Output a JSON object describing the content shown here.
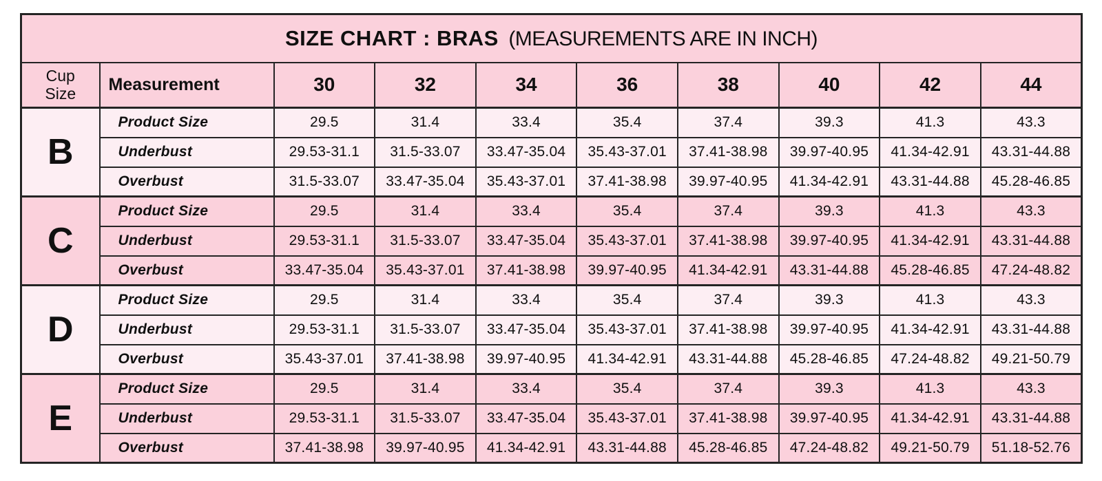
{
  "title": {
    "main": "SIZE CHART : BRAS",
    "sub": "(MEASUREMENTS ARE IN INCH)"
  },
  "header": {
    "cup_size_line1": "Cup",
    "cup_size_line2": "Size",
    "measurement": "Measurement",
    "sizes": [
      "30",
      "32",
      "34",
      "36",
      "38",
      "40",
      "42",
      "44"
    ]
  },
  "colors": {
    "pink_dark": "#fbd1dc",
    "pink_light": "#fdeef3",
    "border": "#242424",
    "text": "#101010",
    "page_background": "#ffffff"
  },
  "chart_data": {
    "type": "table",
    "title": "SIZE CHART : BRAS (MEASUREMENTS ARE IN INCH)",
    "columns": [
      "Cup Size",
      "Measurement",
      "30",
      "32",
      "34",
      "36",
      "38",
      "40",
      "42",
      "44"
    ],
    "groups": [
      {
        "cup": "B",
        "shade": "light",
        "rows": [
          {
            "label": "Product Size",
            "values": [
              "29.5",
              "31.4",
              "33.4",
              "35.4",
              "37.4",
              "39.3",
              "41.3",
              "43.3"
            ]
          },
          {
            "label": "Underbust",
            "values": [
              "29.53-31.1",
              "31.5-33.07",
              "33.47-35.04",
              "35.43-37.01",
              "37.41-38.98",
              "39.97-40.95",
              "41.34-42.91",
              "43.31-44.88"
            ]
          },
          {
            "label": "Overbust",
            "values": [
              "31.5-33.07",
              "33.47-35.04",
              "35.43-37.01",
              "37.41-38.98",
              "39.97-40.95",
              "41.34-42.91",
              "43.31-44.88",
              "45.28-46.85"
            ]
          }
        ]
      },
      {
        "cup": "C",
        "shade": "dark",
        "rows": [
          {
            "label": "Product Size",
            "values": [
              "29.5",
              "31.4",
              "33.4",
              "35.4",
              "37.4",
              "39.3",
              "41.3",
              "43.3"
            ]
          },
          {
            "label": "Underbust",
            "values": [
              "29.53-31.1",
              "31.5-33.07",
              "33.47-35.04",
              "35.43-37.01",
              "37.41-38.98",
              "39.97-40.95",
              "41.34-42.91",
              "43.31-44.88"
            ]
          },
          {
            "label": "Overbust",
            "values": [
              "33.47-35.04",
              "35.43-37.01",
              "37.41-38.98",
              "39.97-40.95",
              "41.34-42.91",
              "43.31-44.88",
              "45.28-46.85",
              "47.24-48.82"
            ]
          }
        ]
      },
      {
        "cup": "D",
        "shade": "light",
        "rows": [
          {
            "label": "Product Size",
            "values": [
              "29.5",
              "31.4",
              "33.4",
              "35.4",
              "37.4",
              "39.3",
              "41.3",
              "43.3"
            ]
          },
          {
            "label": "Underbust",
            "values": [
              "29.53-31.1",
              "31.5-33.07",
              "33.47-35.04",
              "35.43-37.01",
              "37.41-38.98",
              "39.97-40.95",
              "41.34-42.91",
              "43.31-44.88"
            ]
          },
          {
            "label": "Overbust",
            "values": [
              "35.43-37.01",
              "37.41-38.98",
              "39.97-40.95",
              "41.34-42.91",
              "43.31-44.88",
              "45.28-46.85",
              "47.24-48.82",
              "49.21-50.79"
            ]
          }
        ]
      },
      {
        "cup": "E",
        "shade": "dark",
        "rows": [
          {
            "label": "Product Size",
            "values": [
              "29.5",
              "31.4",
              "33.4",
              "35.4",
              "37.4",
              "39.3",
              "41.3",
              "43.3"
            ]
          },
          {
            "label": "Underbust",
            "values": [
              "29.53-31.1",
              "31.5-33.07",
              "33.47-35.04",
              "35.43-37.01",
              "37.41-38.98",
              "39.97-40.95",
              "41.34-42.91",
              "43.31-44.88"
            ]
          },
          {
            "label": "Overbust",
            "values": [
              "37.41-38.98",
              "39.97-40.95",
              "41.34-42.91",
              "43.31-44.88",
              "45.28-46.85",
              "47.24-48.82",
              "49.21-50.79",
              "51.18-52.76"
            ]
          }
        ]
      }
    ]
  }
}
